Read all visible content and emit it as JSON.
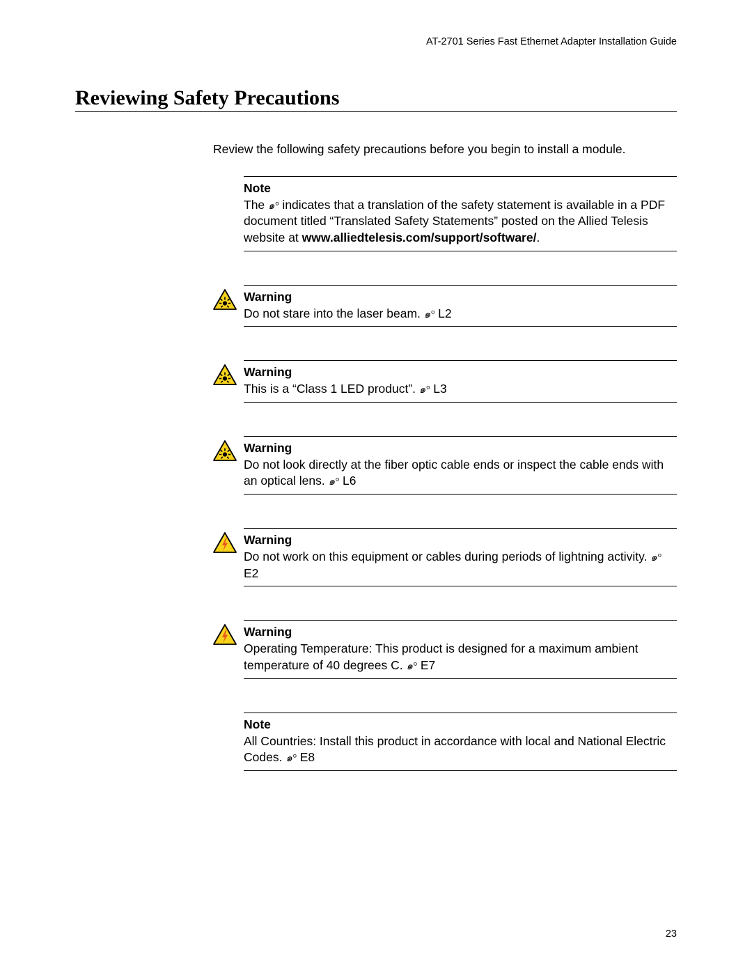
{
  "running_header": "AT-2701 Series Fast Ethernet Adapter Installation Guide",
  "section_title": "Reviewing Safety Precautions",
  "intro": "Review the following safety precautions before you begin to install a module.",
  "ref_symbol": "๑°",
  "blocks": [
    {
      "icon": "none",
      "label": "Note",
      "body_pre": "The ",
      "body_ref": true,
      "body_mid": " indicates that a translation of the safety statement is available in a PDF document titled “Translated Safety Statements” posted on the Allied Telesis website at ",
      "body_bold": "www.alliedtelesis.com/support/software/",
      "body_post": ".",
      "ref_code": ""
    },
    {
      "icon": "laser",
      "label": "Warning",
      "body_pre": "Do not stare into the laser beam. ",
      "body_ref": true,
      "body_mid": "",
      "body_bold": "",
      "body_post": "",
      "ref_code": " L2"
    },
    {
      "icon": "laser",
      "label": "Warning",
      "body_pre": "This is a “Class 1 LED product”. ",
      "body_ref": true,
      "body_mid": "",
      "body_bold": "",
      "body_post": "",
      "ref_code": " L3"
    },
    {
      "icon": "laser",
      "label": "Warning",
      "body_pre": "Do not look directly at the fiber optic cable ends or inspect the cable ends with an optical lens. ",
      "body_ref": true,
      "body_mid": "",
      "body_bold": "",
      "body_post": "",
      "ref_code": " L6"
    },
    {
      "icon": "electric",
      "label": "Warning",
      "body_pre": "Do not work on this equipment or cables during periods of lightning activity. ",
      "body_ref": true,
      "body_mid": "",
      "body_bold": "",
      "body_post": "",
      "ref_code": " E2"
    },
    {
      "icon": "electric",
      "label": "Warning",
      "body_pre": "Operating Temperature: This product is designed for a maximum ambient temperature of 40 degrees C. ",
      "body_ref": true,
      "body_mid": "",
      "body_bold": "",
      "body_post": "",
      "ref_code": " E7"
    },
    {
      "icon": "none",
      "label": "Note",
      "body_pre": "All Countries: Install this product in accordance with local and National Electric Codes. ",
      "body_ref": true,
      "body_mid": "",
      "body_bold": "",
      "body_post": "",
      "ref_code": " E8"
    }
  ],
  "icons": {
    "laser": {
      "triangle_fill": "#f8d31c",
      "triangle_stroke": "#000000",
      "symbol_fill": "#000000"
    },
    "electric": {
      "triangle_fill": "#f8d31c",
      "triangle_stroke": "#000000",
      "symbol_fill": "#e9571c"
    }
  },
  "page_number": "23"
}
